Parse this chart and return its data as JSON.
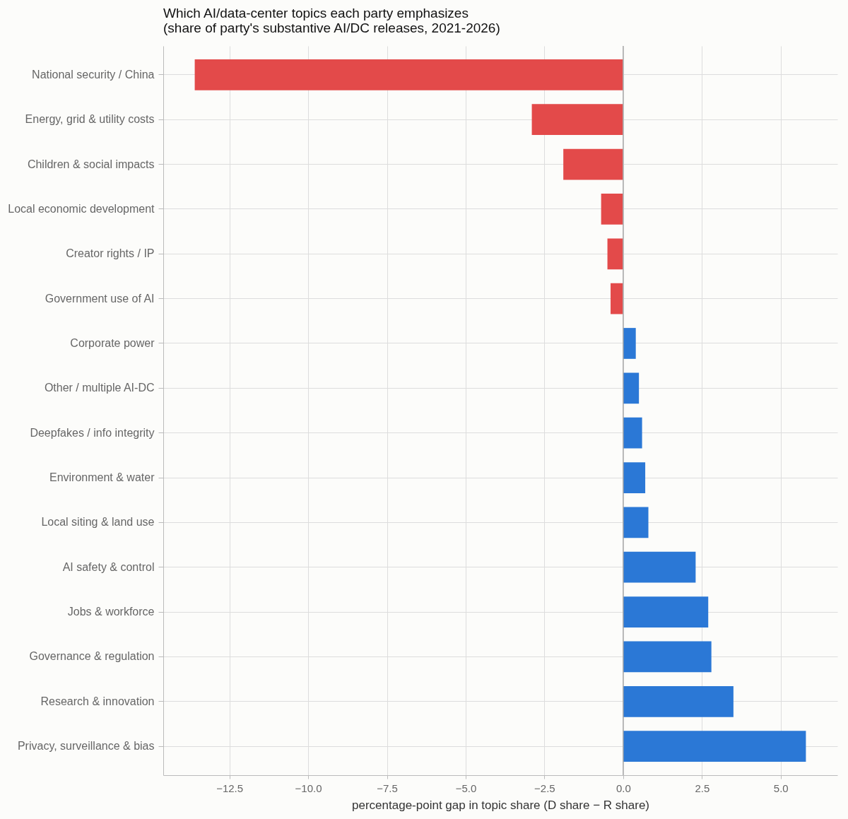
{
  "chart_data": {
    "type": "bar",
    "orientation": "horizontal",
    "title": "Which AI/data-center topics each party emphasizes\n(share of party's substantive AI/DC releases, 2021-2026)",
    "xlabel": "percentage-point gap in topic share (D share − R share)",
    "categories": [
      "National security / China",
      "Energy, grid & utility costs",
      "Children & social impacts",
      "Local economic development",
      "Creator rights / IP",
      "Government use of AI",
      "Corporate power",
      "Other / multiple AI-DC",
      "Deepfakes / info integrity",
      "Environment & water",
      "Local siting & land use",
      "AI safety & control",
      "Jobs & workforce",
      "Governance & regulation",
      "Research & innovation",
      "Privacy, surveillance & bias"
    ],
    "values": [
      -13.6,
      -2.9,
      -1.9,
      -0.7,
      -0.5,
      -0.4,
      0.4,
      0.5,
      0.6,
      0.7,
      0.8,
      2.3,
      2.7,
      2.8,
      3.5,
      5.8
    ],
    "colors": [
      "#e34a4a",
      "#e34a4a",
      "#e34a4a",
      "#e34a4a",
      "#e34a4a",
      "#e34a4a",
      "#2b78d6",
      "#2b78d6",
      "#2b78d6",
      "#2b78d6",
      "#2b78d6",
      "#2b78d6",
      "#2b78d6",
      "#2b78d6",
      "#2b78d6",
      "#2b78d6"
    ],
    "xlim": [
      -14.6,
      6.8
    ],
    "xticks": [
      {
        "value": -12.5,
        "label": "−12.5"
      },
      {
        "value": -10,
        "label": "−10.0"
      },
      {
        "value": -7.5,
        "label": "−7.5"
      },
      {
        "value": -5,
        "label": "−5.0"
      },
      {
        "value": -2.5,
        "label": "−2.5"
      },
      {
        "value": 0,
        "label": "0.0"
      },
      {
        "value": 2.5,
        "label": "2.5"
      },
      {
        "value": 5,
        "label": "5.0"
      }
    ],
    "ref_lines": [
      {
        "axis": "x",
        "value": 0,
        "color": "#aaaaaa"
      }
    ],
    "grid": true
  }
}
